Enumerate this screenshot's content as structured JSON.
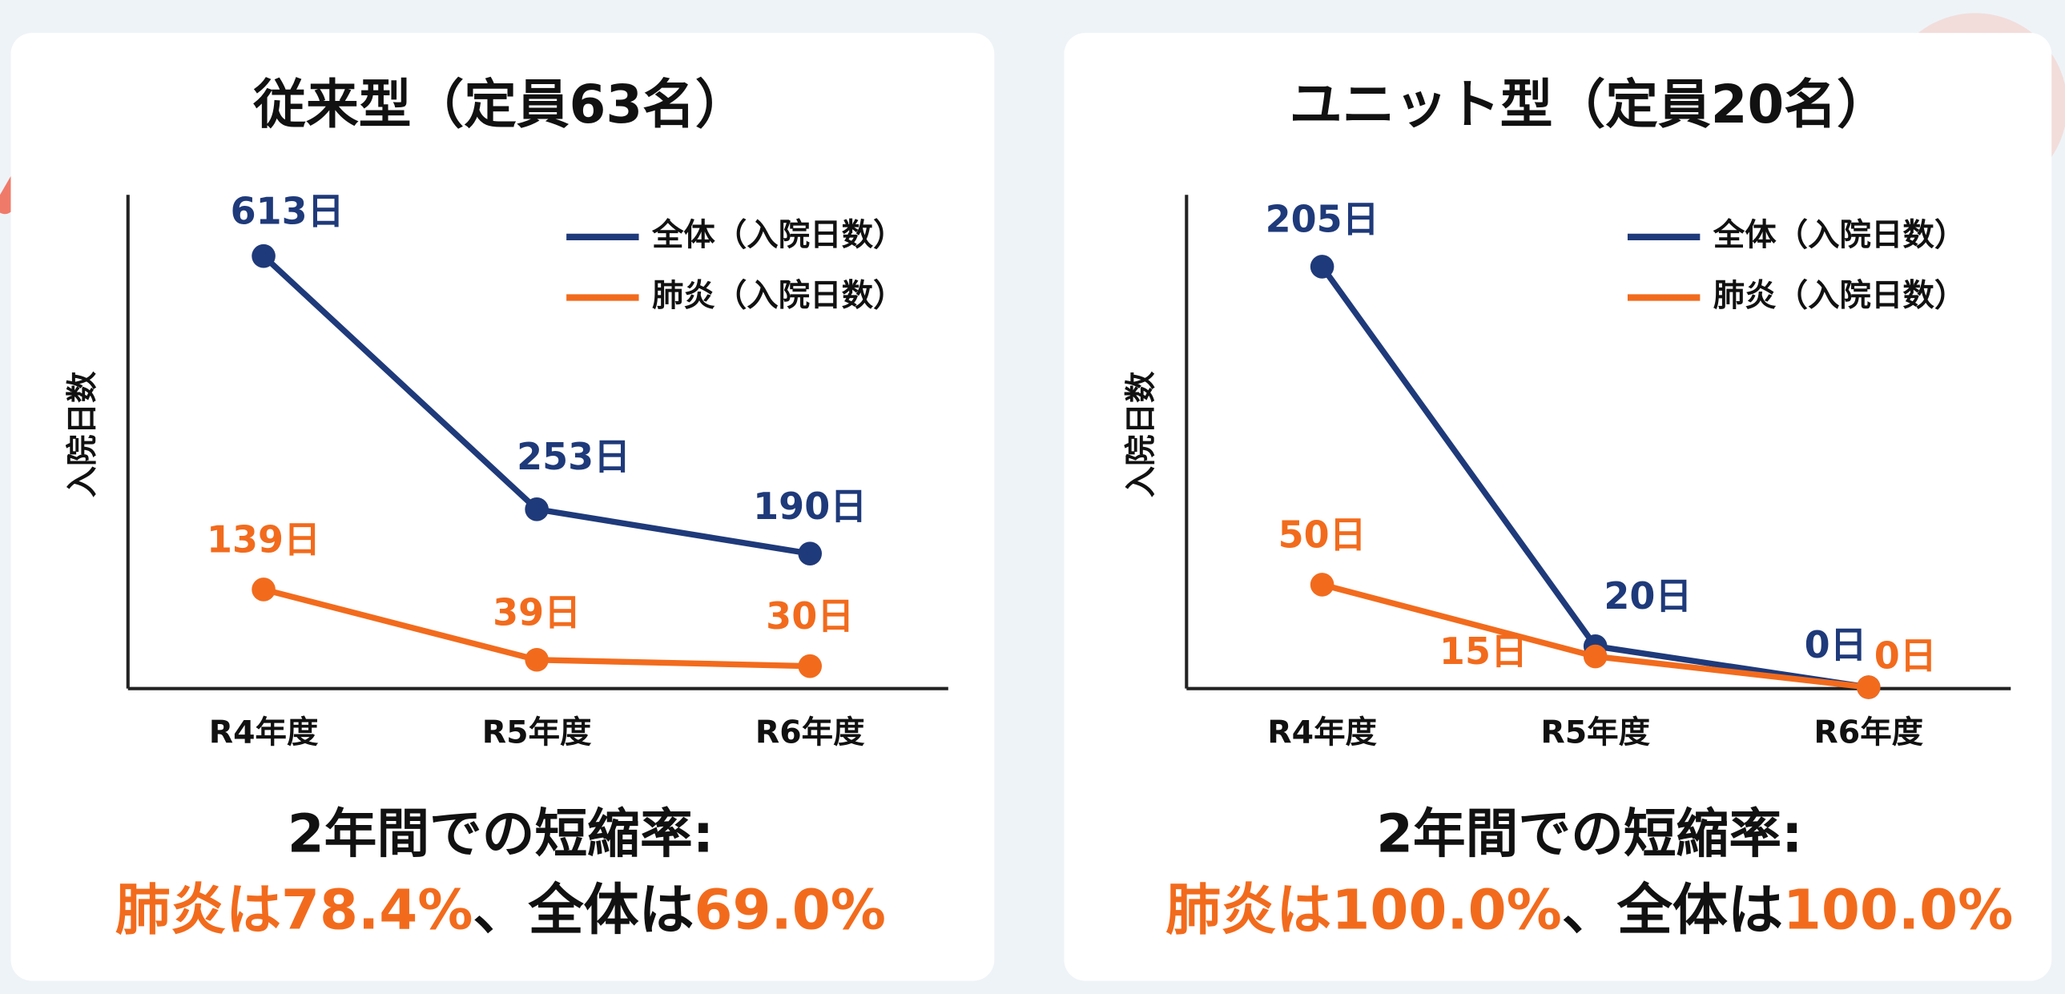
{
  "chart_data": [
    {
      "type": "line",
      "title": "従来型（定員63名）",
      "y_label": "入院日数",
      "categories": [
        "R4年度",
        "R5年度",
        "R6年度"
      ],
      "series": [
        {
          "name": "全体（入院日数）",
          "color": "#1f3a7a",
          "values": [
            613,
            253,
            190
          ],
          "value_labels": [
            "613日",
            "253日",
            "190日"
          ]
        },
        {
          "name": "肺炎（入院日数）",
          "color": "#f26b1d",
          "values": [
            139,
            39,
            30
          ],
          "value_labels": [
            "139日",
            "39日",
            "30日"
          ]
        }
      ],
      "ylim": [
        0,
        700
      ],
      "legend": "top-right",
      "summary_heading": "2年間での短縮率:",
      "summary_parts": [
        "肺炎は",
        "78.4%",
        "、全体は",
        "69.0%"
      ]
    },
    {
      "type": "line",
      "title": "ユニット型（定員20名）",
      "y_label": "入院日数",
      "categories": [
        "R4年度",
        "R5年度",
        "R6年度"
      ],
      "series": [
        {
          "name": "全体（入院日数）",
          "color": "#1f3a7a",
          "values": [
            205,
            20,
            0
          ],
          "value_labels": [
            "205日",
            "20日",
            "0日"
          ]
        },
        {
          "name": "肺炎（入院日数）",
          "color": "#f26b1d",
          "values": [
            50,
            15,
            0
          ],
          "value_labels": [
            "50日",
            "15日",
            "0日"
          ]
        }
      ],
      "ylim": [
        0,
        240
      ],
      "legend": "top-right",
      "summary_heading": "2年間での短縮率:",
      "summary_parts": [
        "肺炎は",
        "100.0%",
        "、全体は",
        "100.0%"
      ]
    }
  ]
}
